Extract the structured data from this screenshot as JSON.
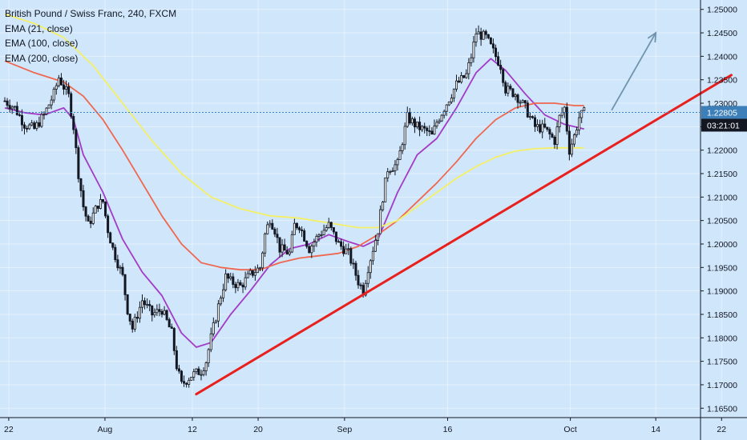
{
  "legend": {
    "symbol": "British Pound / Swiss Franc, 240, FXCM",
    "indicators": [
      "EMA (21, close)",
      "EMA (100, close)",
      "EMA (200, close)"
    ]
  },
  "colors": {
    "background": "#cfe6fb",
    "candle": "#131722",
    "ema21": "#a33bc6",
    "ema100": "#f0674f",
    "ema200": "#f5ef63",
    "trendline": "#e8201e",
    "arrow": "#6f94ad",
    "price_line": "#3d87c8",
    "price_badge": "#3d7fb8",
    "time_badge": "#131722",
    "axis": "#131722"
  },
  "chart_data": {
    "type": "candlestick",
    "symbol": "British Pound / Swiss Franc",
    "timeframe": "240",
    "source": "FXCM",
    "y_ticks": [
      "1.25000",
      "1.24500",
      "1.24000",
      "1.23500",
      "1.23000",
      "1.22500",
      "1.22000",
      "1.21500",
      "1.21000",
      "1.20500",
      "1.20000",
      "1.19500",
      "1.19000",
      "1.18500",
      "1.18000",
      "1.17500",
      "1.17000",
      "1.16500"
    ],
    "ylim": [
      1.163,
      1.252
    ],
    "x_ticks": [
      {
        "label": "22",
        "t": 0.4
      },
      {
        "label": "Aug",
        "t": 10.2
      },
      {
        "label": "12",
        "t": 19.1
      },
      {
        "label": "20",
        "t": 25.8
      },
      {
        "label": "Sep",
        "t": 34.6
      },
      {
        "label": "16",
        "t": 45.1
      },
      {
        "label": "Oct",
        "t": 57.6
      },
      {
        "label": "14",
        "t": 66.3
      },
      {
        "label": "22",
        "t": 73.0
      }
    ],
    "xlim": [
      0,
      80
    ],
    "last_price": {
      "value": "1.22805",
      "y": 1.22805
    },
    "countdown": "03:21:01",
    "price_path": [
      [
        0.0,
        1.2305
      ],
      [
        1.0,
        1.229
      ],
      [
        2.0,
        1.2255
      ],
      [
        3.0,
        1.2245
      ],
      [
        4.0,
        1.2275
      ],
      [
        5.0,
        1.232
      ],
      [
        5.5,
        1.2355
      ],
      [
        6.5,
        1.2315
      ],
      [
        7.0,
        1.225
      ],
      [
        7.5,
        1.215
      ],
      [
        8.0,
        1.208
      ],
      [
        8.5,
        1.204
      ],
      [
        9.5,
        1.2085
      ],
      [
        10.0,
        1.209
      ],
      [
        10.5,
        1.203
      ],
      [
        11.0,
        1.199
      ],
      [
        12.0,
        1.193
      ],
      [
        12.5,
        1.186
      ],
      [
        13.0,
        1.182
      ],
      [
        14.0,
        1.188
      ],
      [
        15.0,
        1.185
      ],
      [
        16.0,
        1.186
      ],
      [
        17.0,
        1.181
      ],
      [
        17.5,
        1.174
      ],
      [
        18.0,
        1.17
      ],
      [
        19.0,
        1.172
      ],
      [
        20.0,
        1.173
      ],
      [
        20.5,
        1.175
      ],
      [
        21.0,
        1.18
      ],
      [
        22.0,
        1.189
      ],
      [
        22.5,
        1.193
      ],
      [
        23.0,
        1.192
      ],
      [
        24.0,
        1.191
      ],
      [
        25.0,
        1.1935
      ],
      [
        26.0,
        1.195
      ],
      [
        26.5,
        1.202
      ],
      [
        27.0,
        1.2055
      ],
      [
        27.5,
        1.203
      ],
      [
        28.0,
        1.199
      ],
      [
        29.0,
        1.198
      ],
      [
        29.5,
        1.204
      ],
      [
        30.0,
        1.204
      ],
      [
        31.0,
        1.199
      ],
      [
        32.0,
        1.202
      ],
      [
        33.0,
        1.204
      ],
      [
        34.0,
        1.2
      ],
      [
        35.0,
        1.198
      ],
      [
        36.0,
        1.192
      ],
      [
        36.5,
        1.19
      ],
      [
        37.0,
        1.195
      ],
      [
        38.0,
        1.203
      ],
      [
        38.5,
        1.21
      ],
      [
        39.0,
        1.216
      ],
      [
        40.0,
        1.217
      ],
      [
        40.5,
        1.222
      ],
      [
        41.0,
        1.227
      ],
      [
        42.0,
        1.225
      ],
      [
        43.0,
        1.224
      ],
      [
        43.5,
        1.223
      ],
      [
        44.0,
        1.226
      ],
      [
        45.0,
        1.23
      ],
      [
        46.0,
        1.234
      ],
      [
        47.0,
        1.236
      ],
      [
        47.5,
        1.24
      ],
      [
        48.0,
        1.245
      ],
      [
        49.0,
        1.244
      ],
      [
        50.0,
        1.24
      ],
      [
        50.5,
        1.238
      ],
      [
        51.0,
        1.233
      ],
      [
        52.0,
        1.232
      ],
      [
        53.0,
        1.229
      ],
      [
        54.0,
        1.225
      ],
      [
        55.0,
        1.2245
      ],
      [
        56.0,
        1.222
      ],
      [
        56.5,
        1.227
      ],
      [
        57.0,
        1.229
      ],
      [
        57.5,
        1.22
      ],
      [
        58.0,
        1.223
      ],
      [
        58.5,
        1.227
      ],
      [
        59.0,
        1.228
      ]
    ],
    "series": [
      {
        "name": "EMA (21, close)",
        "color": "#a33bc6",
        "points": [
          [
            0,
            1.229
          ],
          [
            2,
            1.228
          ],
          [
            4,
            1.2275
          ],
          [
            6,
            1.229
          ],
          [
            7,
            1.2265
          ],
          [
            8,
            1.219
          ],
          [
            10,
            1.211
          ],
          [
            12,
            1.201
          ],
          [
            14,
            1.194
          ],
          [
            16,
            1.189
          ],
          [
            18,
            1.181
          ],
          [
            19.5,
            1.178
          ],
          [
            21,
            1.179
          ],
          [
            23,
            1.185
          ],
          [
            25,
            1.19
          ],
          [
            27,
            1.1955
          ],
          [
            29,
            1.199
          ],
          [
            31,
            1.2
          ],
          [
            33,
            1.202
          ],
          [
            35,
            1.2005
          ],
          [
            36.5,
            1.1995
          ],
          [
            38,
            1.201
          ],
          [
            40,
            1.211
          ],
          [
            42,
            1.219
          ],
          [
            44,
            1.2225
          ],
          [
            46,
            1.229
          ],
          [
            48,
            1.2365
          ],
          [
            49.5,
            1.2395
          ],
          [
            51,
            1.237
          ],
          [
            53,
            1.232
          ],
          [
            55,
            1.2275
          ],
          [
            57,
            1.2255
          ],
          [
            59,
            1.2245
          ]
        ]
      },
      {
        "name": "EMA (100, close)",
        "color": "#f0674f",
        "points": [
          [
            0,
            1.239
          ],
          [
            3,
            1.2365
          ],
          [
            6,
            1.2345
          ],
          [
            8,
            1.2315
          ],
          [
            10,
            1.2265
          ],
          [
            12,
            1.22
          ],
          [
            14,
            1.213
          ],
          [
            16,
            1.206
          ],
          [
            18,
            1.2
          ],
          [
            20,
            1.196
          ],
          [
            22,
            1.195
          ],
          [
            24,
            1.1945
          ],
          [
            26,
            1.1945
          ],
          [
            28,
            1.196
          ],
          [
            30,
            1.197
          ],
          [
            32,
            1.1975
          ],
          [
            34,
            1.198
          ],
          [
            36,
            1.1995
          ],
          [
            38,
            1.202
          ],
          [
            40,
            1.205
          ],
          [
            42,
            1.209
          ],
          [
            44,
            1.213
          ],
          [
            46,
            1.2175
          ],
          [
            48,
            1.2225
          ],
          [
            50,
            1.2265
          ],
          [
            52,
            1.229
          ],
          [
            54,
            1.23
          ],
          [
            56,
            1.23
          ],
          [
            58,
            1.2295
          ],
          [
            59,
            1.2295
          ]
        ]
      },
      {
        "name": "EMA (200, close)",
        "color": "#f5ef63",
        "points": [
          [
            0,
            1.249
          ],
          [
            3,
            1.247
          ],
          [
            6,
            1.244
          ],
          [
            9,
            1.238
          ],
          [
            12,
            1.23
          ],
          [
            15,
            1.222
          ],
          [
            18,
            1.215
          ],
          [
            21,
            1.21
          ],
          [
            24,
            1.2075
          ],
          [
            27,
            1.206
          ],
          [
            30,
            1.2055
          ],
          [
            33,
            1.2045
          ],
          [
            36,
            1.2035
          ],
          [
            38,
            1.2035
          ],
          [
            40,
            1.205
          ],
          [
            42,
            1.208
          ],
          [
            44,
            1.211
          ],
          [
            46,
            1.214
          ],
          [
            48,
            1.2165
          ],
          [
            50,
            1.2185
          ],
          [
            52,
            1.2198
          ],
          [
            54,
            1.2203
          ],
          [
            56,
            1.2205
          ],
          [
            58,
            1.2205
          ],
          [
            59,
            1.2205
          ]
        ]
      }
    ],
    "annotations": {
      "trendline": {
        "from": [
          19.5,
          1.168
        ],
        "to": [
          74.0,
          1.236
        ],
        "color": "#e8201e"
      },
      "arrow": {
        "from": [
          61.8,
          1.2285
        ],
        "to": [
          66.3,
          1.245
        ],
        "color": "#6f94ad"
      }
    }
  }
}
